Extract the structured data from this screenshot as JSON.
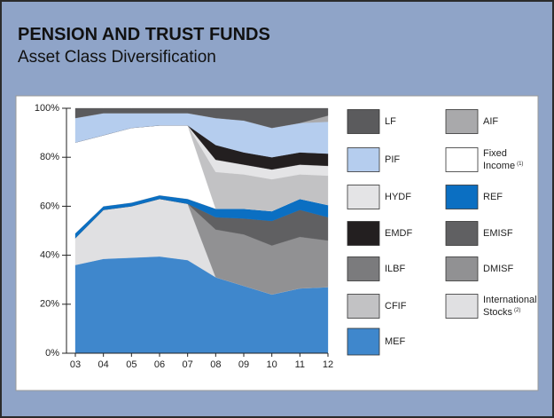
{
  "title": "PENSION AND TRUST FUNDS",
  "subtitle": "Asset Class Diversification",
  "chart_data": {
    "type": "stacked_area",
    "categories": [
      "03",
      "04",
      "05",
      "06",
      "07",
      "08",
      "09",
      "10",
      "11",
      "12"
    ],
    "ylim": [
      0,
      100
    ],
    "yticks": [
      {
        "value": 0,
        "label": "0%"
      },
      {
        "value": 20,
        "label": "20%"
      },
      {
        "value": 40,
        "label": "40%"
      },
      {
        "value": 60,
        "label": "60%"
      },
      {
        "value": 80,
        "label": "80%"
      },
      {
        "value": 100,
        "label": "100%"
      }
    ],
    "series": [
      {
        "name": "LF",
        "color": "#5b5b5d",
        "values": [
          4,
          2,
          2,
          2,
          2,
          4,
          5,
          8,
          6,
          3
        ]
      },
      {
        "name": "AIF",
        "color": "#a9a9ab",
        "values": [
          0,
          0,
          0,
          0,
          0,
          0,
          0,
          0,
          0,
          2.5
        ]
      },
      {
        "name": "PIF",
        "color": "#b5cdee",
        "values": [
          10,
          9,
          6,
          5,
          5,
          11,
          13,
          12,
          12,
          13
        ]
      },
      {
        "name": "Fixed Income",
        "note": "(1)",
        "color": "#ffffff",
        "values": [
          37,
          29,
          30.5,
          28.5,
          30,
          0,
          0,
          0,
          0,
          0
        ]
      },
      {
        "name": "HYDF",
        "color": "#e4e4e6",
        "values": [
          0,
          0,
          0,
          0,
          0,
          5,
          4,
          4,
          4,
          4
        ]
      },
      {
        "name": "REF",
        "color": "#0b6fc2",
        "values": [
          2,
          1.5,
          1.5,
          1.5,
          2,
          3.5,
          4,
          4,
          4.5,
          5
        ]
      },
      {
        "name": "EMDF",
        "color": "#231f20",
        "values": [
          0,
          0,
          0,
          0,
          0,
          6,
          5,
          5,
          5,
          5
        ]
      },
      {
        "name": "EMISF",
        "color": "#606062",
        "values": [
          0,
          0,
          0,
          0,
          0,
          5,
          6.5,
          10,
          11,
          9.5
        ]
      },
      {
        "name": "ILBF",
        "color": "#7b7b7d",
        "values": [
          0,
          0,
          0,
          0,
          0,
          0,
          0,
          0,
          0,
          0
        ]
      },
      {
        "name": "DMISF",
        "color": "#919193",
        "values": [
          0,
          0,
          0,
          0,
          0,
          19.5,
          21,
          20,
          21,
          19
        ]
      },
      {
        "name": "CFIF",
        "color": "#c2c2c4",
        "values": [
          0,
          0,
          0,
          0,
          0,
          15,
          14,
          13,
          10,
          12
        ]
      },
      {
        "name": "International Stocks",
        "note": "(2)",
        "color": "#e0e0e2",
        "values": [
          11,
          20,
          21,
          23.5,
          23,
          0,
          0,
          0,
          0,
          0
        ]
      },
      {
        "name": "MEF",
        "color": "#3f87cc",
        "values": [
          36,
          38.5,
          39,
          39.5,
          38,
          31,
          27.5,
          24,
          26.5,
          27
        ]
      }
    ]
  }
}
